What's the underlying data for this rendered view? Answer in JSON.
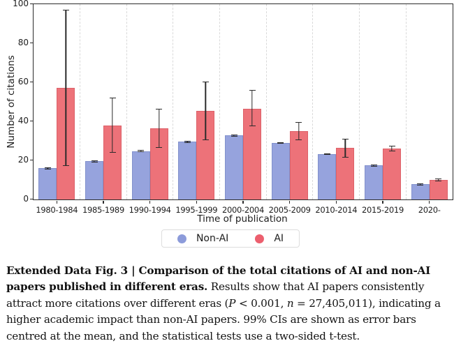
{
  "chart_data": {
    "type": "bar",
    "title": "",
    "xlabel": "Time of publication",
    "ylabel": "Number of citations",
    "ylim": [
      0,
      100
    ],
    "yticks": [
      0,
      20,
      40,
      60,
      80,
      100
    ],
    "grid": "dashed vertical separators between era groups",
    "legend_position": "bottom center",
    "error_bars": "99% CI",
    "categories": [
      "1980-1984",
      "1985-1989",
      "1990-1994",
      "1995-1999",
      "2000-2004",
      "2005-2009",
      "2010-2014",
      "2015-2019",
      "2020-"
    ],
    "series": [
      {
        "name": "Non-AI",
        "color": "#96a3dd",
        "values": [
          16,
          19.5,
          24.8,
          29.7,
          32.7,
          29,
          23.3,
          17.5,
          8
        ],
        "ci_low": [
          15.5,
          19.1,
          24.4,
          29.3,
          32.3,
          28.6,
          22.9,
          17.2,
          7.7
        ],
        "ci_high": [
          16.4,
          19.9,
          25.2,
          30.1,
          33.1,
          29.4,
          23.7,
          17.9,
          8.3
        ]
      },
      {
        "name": "AI",
        "color": "#ed7279",
        "values": [
          57,
          38,
          36.5,
          45.5,
          46.5,
          35,
          26.5,
          26,
          10
        ],
        "ci_low": [
          17,
          24,
          26.5,
          30.5,
          37.5,
          30.5,
          21.5,
          24.5,
          9.2
        ],
        "ci_high": [
          97,
          52,
          46.5,
          60.5,
          56,
          39.5,
          31,
          27.5,
          10.6
        ]
      }
    ]
  },
  "caption": {
    "bold": "Extended Data Fig. 3 | Comparison of the total citations of AI and non-AI papers published in different eras.",
    "normal_1": " Results show that AI papers consistently attract more citations over different eras (",
    "italic_1": "P",
    "normal_2": " < 0.001, ",
    "italic_2": "n",
    "normal_3": " = 27,405,011), indicating a higher academic impact than non-AI papers. 99% CIs are shown as error bars centred at the mean, and the statistical tests use a two-sided t-test."
  }
}
